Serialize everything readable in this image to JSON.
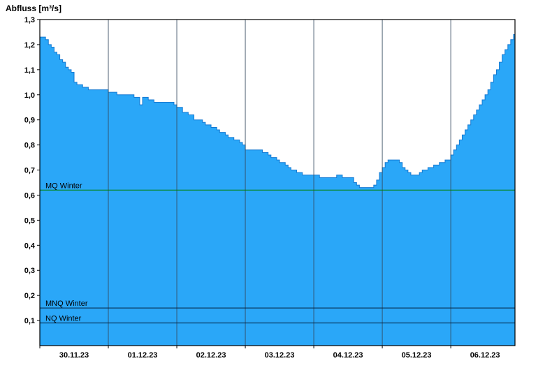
{
  "chart_data": {
    "type": "area",
    "title": "Abfluss [m³/s]",
    "ylabel": "Abfluss [m³/s]",
    "xlabel": "",
    "ylim": [
      0,
      1.3
    ],
    "ytick_step": 0.1,
    "ytick_labels": [
      "0,1",
      "0,2",
      "0,3",
      "0,4",
      "0,5",
      "0,6",
      "0,7",
      "0,8",
      "0,9",
      "1,0",
      "1,1",
      "1,2",
      "1,3"
    ],
    "xlim_hours": [
      0,
      166.5
    ],
    "x_origin": "30.11.23 00:00",
    "x_day_labels": [
      "30.11.23",
      "01.12.23",
      "02.12.23",
      "03.12.23",
      "04.12.23",
      "05.12.23",
      "06.12.23"
    ],
    "grid": "vertical-day-boundaries",
    "legend_position": "none",
    "series": [
      {
        "name": "Abfluss",
        "step": true,
        "points": [
          [
            0,
            1.23
          ],
          [
            2,
            1.22
          ],
          [
            3,
            1.2
          ],
          [
            4,
            1.19
          ],
          [
            5,
            1.17
          ],
          [
            6,
            1.16
          ],
          [
            7,
            1.14
          ],
          [
            8,
            1.13
          ],
          [
            9,
            1.11
          ],
          [
            10,
            1.1
          ],
          [
            11,
            1.09
          ],
          [
            12,
            1.05
          ],
          [
            13,
            1.04
          ],
          [
            15,
            1.03
          ],
          [
            17,
            1.02
          ],
          [
            24,
            1.01
          ],
          [
            27,
            1.0
          ],
          [
            33,
            0.99
          ],
          [
            35,
            0.96
          ],
          [
            36,
            0.99
          ],
          [
            38,
            0.98
          ],
          [
            40,
            0.97
          ],
          [
            47,
            0.96
          ],
          [
            48,
            0.95
          ],
          [
            50,
            0.93
          ],
          [
            52,
            0.92
          ],
          [
            54,
            0.9
          ],
          [
            57,
            0.89
          ],
          [
            58,
            0.88
          ],
          [
            60,
            0.87
          ],
          [
            62,
            0.86
          ],
          [
            63,
            0.85
          ],
          [
            65,
            0.84
          ],
          [
            66,
            0.83
          ],
          [
            68,
            0.82
          ],
          [
            70,
            0.81
          ],
          [
            71,
            0.8
          ],
          [
            72,
            0.78
          ],
          [
            78,
            0.77
          ],
          [
            80,
            0.76
          ],
          [
            81,
            0.75
          ],
          [
            83,
            0.74
          ],
          [
            84,
            0.73
          ],
          [
            86,
            0.72
          ],
          [
            87,
            0.71
          ],
          [
            88,
            0.7
          ],
          [
            90,
            0.69
          ],
          [
            92,
            0.68
          ],
          [
            98,
            0.67
          ],
          [
            104,
            0.68
          ],
          [
            106,
            0.67
          ],
          [
            110,
            0.65
          ],
          [
            111,
            0.64
          ],
          [
            112,
            0.63
          ],
          [
            117,
            0.64
          ],
          [
            118,
            0.66
          ],
          [
            119,
            0.69
          ],
          [
            120,
            0.71
          ],
          [
            121,
            0.73
          ],
          [
            122,
            0.74
          ],
          [
            126,
            0.73
          ],
          [
            127,
            0.71
          ],
          [
            128,
            0.7
          ],
          [
            129,
            0.69
          ],
          [
            130,
            0.68
          ],
          [
            133,
            0.69
          ],
          [
            134,
            0.7
          ],
          [
            136,
            0.71
          ],
          [
            138,
            0.72
          ],
          [
            140,
            0.73
          ],
          [
            142,
            0.74
          ],
          [
            144,
            0.76
          ],
          [
            145,
            0.78
          ],
          [
            146,
            0.8
          ],
          [
            147,
            0.82
          ],
          [
            148,
            0.84
          ],
          [
            149,
            0.86
          ],
          [
            150,
            0.88
          ],
          [
            151,
            0.9
          ],
          [
            152,
            0.92
          ],
          [
            153,
            0.94
          ],
          [
            154,
            0.96
          ],
          [
            155,
            0.98
          ],
          [
            156,
            1.0
          ],
          [
            157,
            1.02
          ],
          [
            158,
            1.05
          ],
          [
            159,
            1.08
          ],
          [
            160,
            1.1
          ],
          [
            161,
            1.13
          ],
          [
            162,
            1.16
          ],
          [
            163,
            1.18
          ],
          [
            164,
            1.2
          ],
          [
            165,
            1.22
          ],
          [
            166,
            1.24
          ],
          [
            166.5,
            1.26
          ]
        ]
      }
    ],
    "reference_lines": [
      {
        "label": "MQ Winter",
        "value": 0.62,
        "color": "#008000"
      },
      {
        "label": "MNQ Winter",
        "value": 0.15,
        "color": "#001f3f"
      },
      {
        "label": "NQ Winter",
        "value": 0.09,
        "color": "#001f3f"
      }
    ],
    "colors": {
      "fill": "#2aa7f8",
      "stroke": "#1479d2",
      "grid": "#34495e",
      "axis": "#000000",
      "background": "#ffffff"
    }
  }
}
